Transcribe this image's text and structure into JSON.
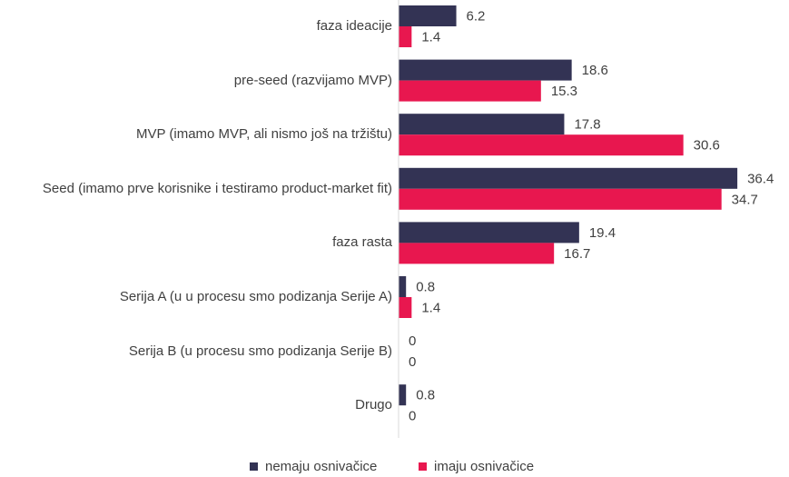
{
  "chart_data": {
    "type": "bar",
    "orientation": "horizontal",
    "categories": [
      "faza ideacije",
      "pre-seed (razvijamo MVP)",
      "MVP (imamo MVP, ali nismo još na tržištu)",
      "Seed (imamo prve korisnike i testiramo product-market fit)",
      "faza rasta",
      "Serija A (u u procesu smo podizanja Serije A)",
      "Serija B (u procesu smo podizanja Serije B)",
      "Drugo"
    ],
    "series": [
      {
        "name": "nemaju osnivačice",
        "color": "#333354",
        "values": [
          6.2,
          18.6,
          17.8,
          36.4,
          19.4,
          0.8,
          0,
          0.8
        ]
      },
      {
        "name": "imaju osnivačice",
        "color": "#E8174F",
        "values": [
          1.4,
          15.3,
          30.6,
          34.7,
          16.7,
          1.4,
          0,
          0
        ]
      }
    ],
    "xlim": [
      0,
      40
    ],
    "grid": false,
    "legend_position": "bottom"
  }
}
